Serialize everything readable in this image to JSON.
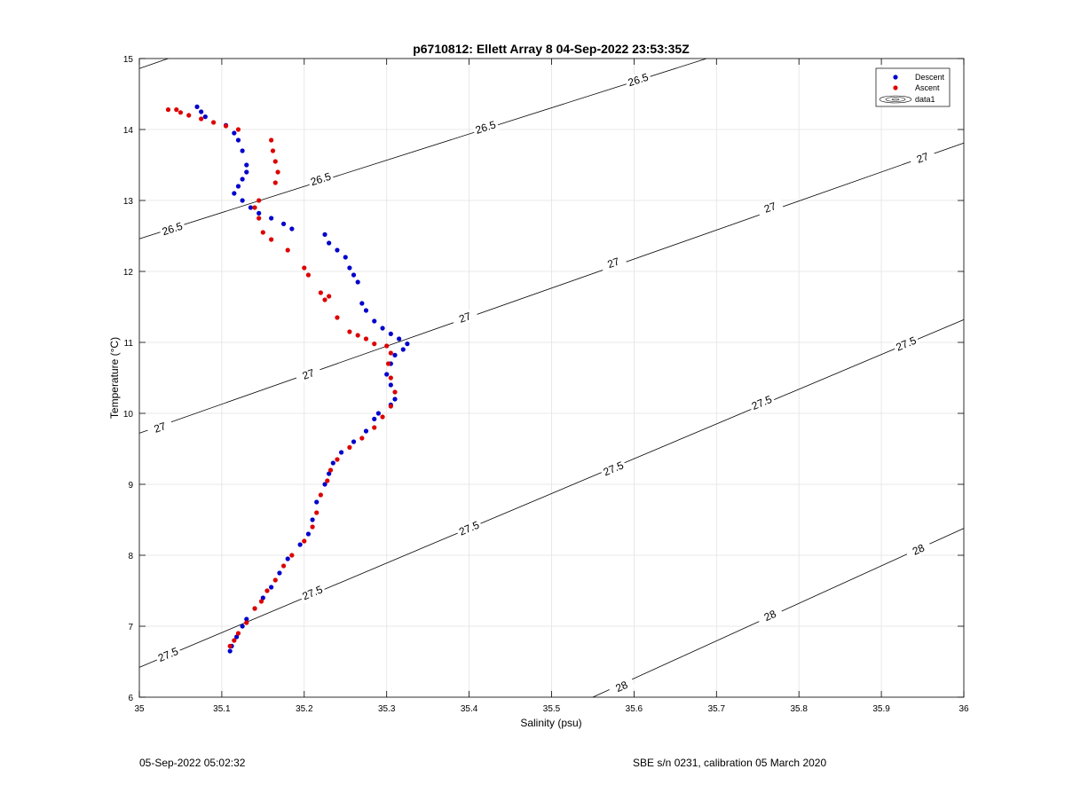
{
  "chart_data": {
    "type": "scatter",
    "title": "p6710812: Ellett Array 8 04-Sep-2022 23:53:35Z",
    "xlabel": "Salinity (psu)",
    "ylabel": "Temperature (°C)",
    "xlim": [
      35,
      36
    ],
    "ylim": [
      6,
      15
    ],
    "xticks": [
      35,
      35.1,
      35.2,
      35.3,
      35.4,
      35.5,
      35.6,
      35.7,
      35.8,
      35.9,
      36
    ],
    "xtick_labels": [
      "35",
      "35.1",
      "35.2",
      "35.3",
      "35.4",
      "35.5",
      "35.6",
      "35.7",
      "35.8",
      "35.9",
      "36"
    ],
    "yticks": [
      6,
      7,
      8,
      9,
      10,
      11,
      12,
      13,
      14,
      15
    ],
    "ytick_labels": [
      "6",
      "7",
      "8",
      "9",
      "10",
      "11",
      "12",
      "13",
      "14",
      "15"
    ],
    "grid": true,
    "legend": {
      "placement": "top-right",
      "entries": [
        "Descent",
        "Ascent",
        "data1"
      ]
    },
    "series": [
      {
        "name": "Descent",
        "color": "#0000cc",
        "marker": "dot",
        "points": [
          [
            35.07,
            14.32
          ],
          [
            35.075,
            14.25
          ],
          [
            35.08,
            14.18
          ],
          [
            35.105,
            14.06
          ],
          [
            35.115,
            13.95
          ],
          [
            35.12,
            13.85
          ],
          [
            35.125,
            13.7
          ],
          [
            35.13,
            13.5
          ],
          [
            35.13,
            13.4
          ],
          [
            35.125,
            13.3
          ],
          [
            35.12,
            13.2
          ],
          [
            35.115,
            13.1
          ],
          [
            35.125,
            13.0
          ],
          [
            35.135,
            12.9
          ],
          [
            35.145,
            12.82
          ],
          [
            35.16,
            12.75
          ],
          [
            35.175,
            12.67
          ],
          [
            35.185,
            12.6
          ],
          [
            35.225,
            12.52
          ],
          [
            35.23,
            12.4
          ],
          [
            35.24,
            12.3
          ],
          [
            35.25,
            12.2
          ],
          [
            35.255,
            12.05
          ],
          [
            35.26,
            11.95
          ],
          [
            35.265,
            11.85
          ],
          [
            35.27,
            11.55
          ],
          [
            35.275,
            11.45
          ],
          [
            35.285,
            11.3
          ],
          [
            35.295,
            11.2
          ],
          [
            35.305,
            11.12
          ],
          [
            35.315,
            11.05
          ],
          [
            35.325,
            10.98
          ],
          [
            35.32,
            10.9
          ],
          [
            35.31,
            10.82
          ],
          [
            35.305,
            10.7
          ],
          [
            35.3,
            10.55
          ],
          [
            35.305,
            10.4
          ],
          [
            35.31,
            10.2
          ],
          [
            35.305,
            10.12
          ],
          [
            35.29,
            10.0
          ],
          [
            35.285,
            9.92
          ],
          [
            35.275,
            9.75
          ],
          [
            35.26,
            9.6
          ],
          [
            35.245,
            9.45
          ],
          [
            35.235,
            9.3
          ],
          [
            35.23,
            9.15
          ],
          [
            35.225,
            9.0
          ],
          [
            35.215,
            8.75
          ],
          [
            35.21,
            8.5
          ],
          [
            35.205,
            8.3
          ],
          [
            35.195,
            8.15
          ],
          [
            35.18,
            7.95
          ],
          [
            35.17,
            7.75
          ],
          [
            35.16,
            7.55
          ],
          [
            35.15,
            7.4
          ],
          [
            35.14,
            7.25
          ],
          [
            35.13,
            7.1
          ],
          [
            35.125,
            7.0
          ],
          [
            35.118,
            6.85
          ],
          [
            35.112,
            6.72
          ],
          [
            35.11,
            6.65
          ]
        ]
      },
      {
        "name": "Ascent",
        "color": "#dd0000",
        "marker": "dot",
        "points": [
          [
            35.035,
            14.28
          ],
          [
            35.045,
            14.28
          ],
          [
            35.05,
            14.24
          ],
          [
            35.06,
            14.2
          ],
          [
            35.075,
            14.15
          ],
          [
            35.09,
            14.1
          ],
          [
            35.105,
            14.05
          ],
          [
            35.12,
            14.0
          ],
          [
            35.16,
            13.85
          ],
          [
            35.162,
            13.7
          ],
          [
            35.165,
            13.55
          ],
          [
            35.168,
            13.4
          ],
          [
            35.165,
            13.25
          ],
          [
            35.145,
            13.0
          ],
          [
            35.14,
            12.9
          ],
          [
            35.145,
            12.75
          ],
          [
            35.15,
            12.55
          ],
          [
            35.16,
            12.45
          ],
          [
            35.18,
            12.3
          ],
          [
            35.2,
            12.05
          ],
          [
            35.205,
            11.95
          ],
          [
            35.22,
            11.7
          ],
          [
            35.225,
            11.6
          ],
          [
            35.23,
            11.65
          ],
          [
            35.24,
            11.35
          ],
          [
            35.255,
            11.15
          ],
          [
            35.265,
            11.1
          ],
          [
            35.275,
            11.05
          ],
          [
            35.285,
            10.98
          ],
          [
            35.3,
            10.95
          ],
          [
            35.305,
            10.85
          ],
          [
            35.302,
            10.7
          ],
          [
            35.305,
            10.5
          ],
          [
            35.31,
            10.3
          ],
          [
            35.305,
            10.1
          ],
          [
            35.295,
            9.95
          ],
          [
            35.285,
            9.8
          ],
          [
            35.27,
            9.65
          ],
          [
            35.255,
            9.52
          ],
          [
            35.24,
            9.35
          ],
          [
            35.232,
            9.2
          ],
          [
            35.228,
            9.05
          ],
          [
            35.22,
            8.85
          ],
          [
            35.215,
            8.6
          ],
          [
            35.21,
            8.4
          ],
          [
            35.2,
            8.2
          ],
          [
            35.185,
            8.0
          ],
          [
            35.175,
            7.85
          ],
          [
            35.165,
            7.65
          ],
          [
            35.155,
            7.5
          ],
          [
            35.148,
            7.35
          ],
          [
            35.14,
            7.25
          ],
          [
            35.13,
            7.05
          ],
          [
            35.12,
            6.9
          ],
          [
            35.115,
            6.8
          ],
          [
            35.11,
            6.72
          ]
        ]
      }
    ],
    "contours": [
      {
        "level": "26.5",
        "line": [
          [
            35.0,
            12.46
          ],
          [
            35.688,
            15.0
          ]
        ],
        "labels": [
          [
            35.04,
            12.6
          ],
          [
            35.22,
            13.3
          ],
          [
            35.42,
            14.03
          ],
          [
            35.605,
            14.7
          ]
        ]
      },
      {
        "level": "27",
        "line": [
          [
            35.0,
            9.72
          ],
          [
            36.0,
            13.81
          ]
        ],
        "labels": [
          [
            35.025,
            9.8
          ],
          [
            35.205,
            10.55
          ],
          [
            35.395,
            11.35
          ],
          [
            35.575,
            12.12
          ],
          [
            35.765,
            12.9
          ],
          [
            35.95,
            13.6
          ]
        ]
      },
      {
        "level": "27.5",
        "line": [
          [
            35.0,
            6.42
          ],
          [
            36.0,
            11.32
          ]
        ],
        "labels": [
          [
            35.035,
            6.6
          ],
          [
            35.21,
            7.47
          ],
          [
            35.4,
            8.38
          ],
          [
            35.575,
            9.22
          ],
          [
            35.755,
            10.15
          ],
          [
            35.93,
            10.98
          ]
        ]
      },
      {
        "level": "28",
        "line": [
          [
            35.55,
            6.0
          ],
          [
            36.0,
            8.38
          ]
        ],
        "labels": [
          [
            35.585,
            6.15
          ],
          [
            35.765,
            7.15
          ],
          [
            35.945,
            8.08
          ]
        ]
      },
      {
        "level": "",
        "line": [
          [
            35.0,
            14.86
          ],
          [
            35.035,
            15.0
          ]
        ],
        "labels": []
      }
    ]
  },
  "footer": {
    "left": "05-Sep-2022 05:02:32",
    "right": "SBE s/n 0231, calibration 05 March 2020"
  }
}
